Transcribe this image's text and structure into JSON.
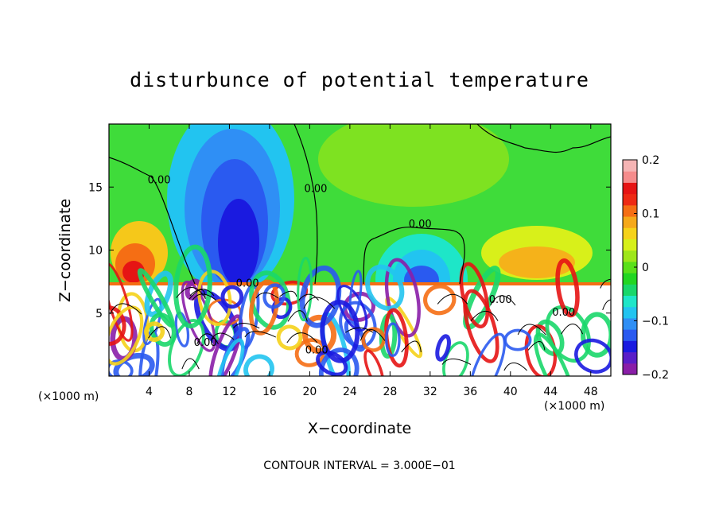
{
  "chart_data": {
    "type": "heatmap",
    "title": "disturbunce of potential temperature",
    "xlabel": "X−coordinate",
    "ylabel": "Z−coordinate",
    "x_unit_left": "(×1000 m)",
    "x_unit_right": "(×1000 m)",
    "footer": "CONTOUR INTERVAL = 3.000E−01",
    "xlim": [
      0,
      50
    ],
    "ylim": [
      0,
      20
    ],
    "x_ticks": [
      4,
      8,
      12,
      16,
      20,
      24,
      28,
      32,
      36,
      40,
      44,
      48
    ],
    "y_ticks": [
      5,
      10,
      15
    ],
    "colorbar": {
      "range": [
        -0.2,
        0.2
      ],
      "ticks": [
        {
          "value": 0.2,
          "label": "0.2"
        },
        {
          "value": 0.1,
          "label": "0.1"
        },
        {
          "value": 0.0,
          "label": "0"
        },
        {
          "value": -0.1,
          "label": "−0.1"
        },
        {
          "value": -0.2,
          "label": "−0.2"
        }
      ],
      "colors": [
        "#8a1ea8",
        "#5a1ec8",
        "#1a1ae0",
        "#2a5af0",
        "#2f8ff5",
        "#22c4f0",
        "#1ee6c8",
        "#19d76a",
        "#22d622",
        "#5ae01a",
        "#9ee61a",
        "#d6f01a",
        "#f5d21a",
        "#f5a81a",
        "#f56e14",
        "#ee2a14",
        "#e61414",
        "#f58c8c",
        "#f5b4b4"
      ]
    },
    "contours": [
      {
        "value": 0.0,
        "label": "0.00"
      }
    ],
    "contour_labels": [
      {
        "text": "0.00",
        "x": 5,
        "y": 15.3
      },
      {
        "text": "0.00",
        "x": 20.6,
        "y": 14.6
      },
      {
        "text": "0.00",
        "x": 31,
        "y": 11.8
      },
      {
        "text": "0.00",
        "x": 13.8,
        "y": 7.1
      },
      {
        "text": "0.00",
        "x": 9.6,
        "y": 2.4
      },
      {
        "text": "0.00",
        "x": 20.7,
        "y": 1.8
      },
      {
        "text": "0.00",
        "x": 39,
        "y": 5.8
      },
      {
        "text": "0.00",
        "x": 45.3,
        "y": 4.8
      }
    ]
  }
}
